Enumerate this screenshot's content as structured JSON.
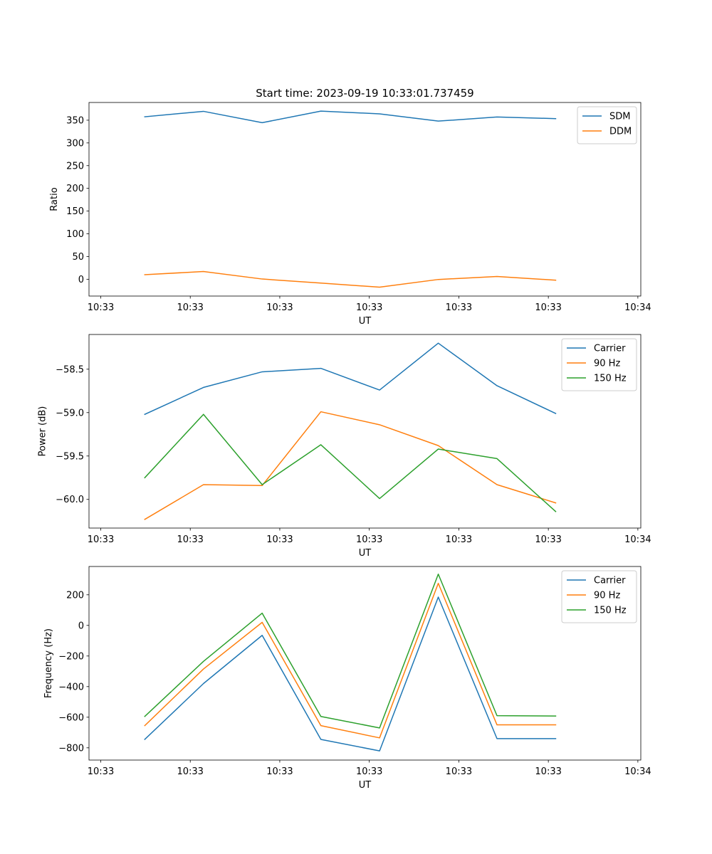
{
  "figure": {
    "title": "Start time: 2023-09-19 10:33:01.737459"
  },
  "chart_data": [
    {
      "type": "line",
      "title": "Start time: 2023-09-19 10:33:01.737459",
      "xlabel": "UT",
      "ylabel": "Ratio",
      "x": [
        1,
        2,
        3,
        4,
        5,
        6,
        7,
        8
      ],
      "xlim": [
        0.05,
        9.45
      ],
      "xticks": [
        0.25,
        1.775,
        3.3,
        4.825,
        6.35,
        7.875,
        9.4
      ],
      "xtick_labels": [
        "10:33",
        "10:33",
        "10:33",
        "10:33",
        "10:33",
        "10:33",
        "10:34"
      ],
      "ylim": [
        -37,
        389
      ],
      "yticks": [
        0,
        50,
        100,
        150,
        200,
        250,
        300,
        350
      ],
      "ytick_labels": [
        "0",
        "50",
        "100",
        "150",
        "200",
        "250",
        "300",
        "350"
      ],
      "legend": "top-right",
      "grid": false,
      "series": [
        {
          "name": "SDM",
          "color": "#1f77b4",
          "values": [
            357.5,
            369.5,
            344.5,
            370.0,
            364.0,
            348.0,
            357.0,
            353.5
          ]
        },
        {
          "name": "DDM",
          "color": "#ff7f0e",
          "values": [
            10.0,
            17.0,
            0.5,
            -8.5,
            -17.5,
            -0.5,
            6.0,
            -2.0
          ]
        }
      ]
    },
    {
      "type": "line",
      "title": "",
      "xlabel": "UT",
      "ylabel": "Power (dB)",
      "x": [
        1,
        2,
        3,
        4,
        5,
        6,
        7,
        8
      ],
      "xlim": [
        0.05,
        9.45
      ],
      "xticks": [
        0.25,
        1.775,
        3.3,
        4.825,
        6.35,
        7.875,
        9.4
      ],
      "xtick_labels": [
        "10:33",
        "10:33",
        "10:33",
        "10:33",
        "10:33",
        "10:33",
        "10:34"
      ],
      "ylim": [
        -60.33,
        -58.1
      ],
      "yticks": [
        -60.0,
        -59.5,
        -59.0,
        -58.5
      ],
      "ytick_labels": [
        "−60.0",
        "−59.5",
        "−59.0",
        "−58.5"
      ],
      "legend": "top-right",
      "grid": false,
      "series": [
        {
          "name": "Carrier",
          "color": "#1f77b4",
          "values": [
            -59.02,
            -58.71,
            -58.53,
            -58.49,
            -58.74,
            -58.2,
            -58.69,
            -59.01
          ]
        },
        {
          "name": "90 Hz",
          "color": "#ff7f0e",
          "values": [
            -60.23,
            -59.83,
            -59.84,
            -58.99,
            -59.14,
            -59.38,
            -59.83,
            -60.04
          ]
        },
        {
          "name": "150 Hz",
          "color": "#2ca02c",
          "values": [
            -59.75,
            -59.02,
            -59.83,
            -59.37,
            -59.99,
            -59.42,
            -59.53,
            -60.14
          ]
        }
      ]
    },
    {
      "type": "line",
      "title": "",
      "xlabel": "UT",
      "ylabel": "Frequency (Hz)",
      "x": [
        1,
        2,
        3,
        4,
        5,
        6,
        7,
        8
      ],
      "xlim": [
        0.05,
        9.45
      ],
      "xticks": [
        0.25,
        1.775,
        3.3,
        4.825,
        6.35,
        7.875,
        9.4
      ],
      "xtick_labels": [
        "10:33",
        "10:33",
        "10:33",
        "10:33",
        "10:33",
        "10:33",
        "10:34"
      ],
      "ylim": [
        -880,
        385
      ],
      "yticks": [
        -800,
        -600,
        -400,
        -200,
        0,
        200
      ],
      "ytick_labels": [
        "−800",
        "−600",
        "−400",
        "−200",
        "0",
        "200"
      ],
      "legend": "top-right",
      "grid": false,
      "series": [
        {
          "name": "Carrier",
          "color": "#1f77b4",
          "values": [
            -745,
            -380,
            -65,
            -745,
            -820,
            185,
            -740,
            -740
          ]
        },
        {
          "name": "90 Hz",
          "color": "#ff7f0e",
          "values": [
            -655,
            -285,
            20,
            -655,
            -735,
            275,
            -650,
            -650
          ]
        },
        {
          "name": "150 Hz",
          "color": "#2ca02c",
          "values": [
            -595,
            -235,
            80,
            -595,
            -670,
            335,
            -590,
            -592
          ]
        }
      ]
    }
  ]
}
